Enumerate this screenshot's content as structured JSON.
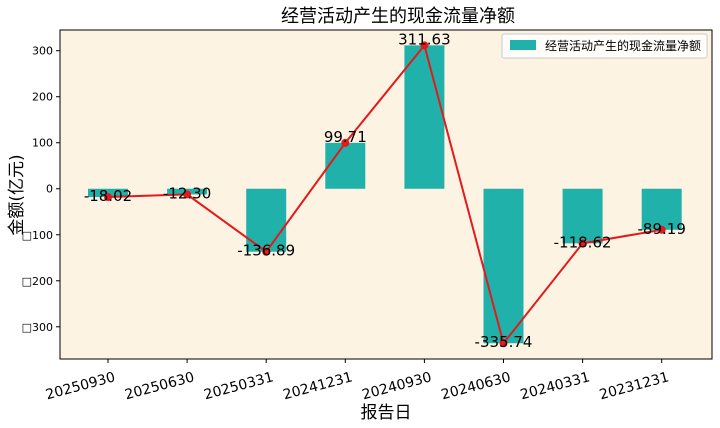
{
  "chart_data": {
    "type": "bar",
    "title": "经营活动产生的现金流量净额",
    "xlabel": "报告日",
    "ylabel": "金额(亿元)",
    "categories": [
      "20250930",
      "20250630",
      "20250331",
      "20241231",
      "20240930",
      "20240630",
      "20240331",
      "20231231"
    ],
    "series": [
      {
        "name": "经营活动产生的现金流量净额",
        "kind": "bar",
        "color": "#20b2aa",
        "values": [
          -18.02,
          -12.3,
          -136.89,
          99.71,
          311.63,
          -335.74,
          -118.62,
          -89.19
        ]
      },
      {
        "kind": "line",
        "color": "#e31a1c",
        "values": [
          -18.02,
          -12.3,
          -136.89,
          99.71,
          311.63,
          -335.74,
          -118.62,
          -89.19
        ]
      }
    ],
    "data_labels": [
      "-18.02",
      "-12.30",
      "-136.89",
      "99.71",
      "311.63",
      "-335.74",
      "-118.62",
      "-89.19"
    ],
    "yticks": [
      300,
      200,
      100,
      0,
      -100,
      -200,
      -300
    ],
    "ytick_labels": [
      "300",
      "200",
      "100",
      "0",
      "□100",
      "□200",
      "□300"
    ],
    "ylim": [
      -370,
      345
    ],
    "grid": false,
    "legend_position": "top-right",
    "plot_background": "#fdf3e3"
  }
}
